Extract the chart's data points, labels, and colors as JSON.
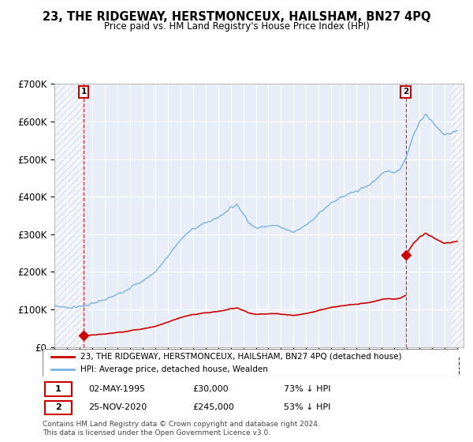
{
  "title": "23, THE RIDGEWAY, HERSTMONCEUX, HAILSHAM, BN27 4PQ",
  "subtitle": "Price paid vs. HM Land Registry's House Price Index (HPI)",
  "ylim": [
    0,
    700000
  ],
  "yticks": [
    0,
    100000,
    200000,
    300000,
    400000,
    500000,
    600000,
    700000
  ],
  "ytick_labels": [
    "£0",
    "£100K",
    "£200K",
    "£300K",
    "£400K",
    "£500K",
    "£600K",
    "£700K"
  ],
  "purchase1_year": 1995.33,
  "purchase1_price": 30000,
  "purchase2_year": 2020.9,
  "purchase2_price": 245000,
  "legend1": "23, THE RIDGEWAY, HERSTMONCEUX, HAILSHAM, BN27 4PQ (detached house)",
  "legend2": "HPI: Average price, detached house, Wealden",
  "note1_date": "02-MAY-1995",
  "note1_price": "£30,000",
  "note1_hpi": "73% ↓ HPI",
  "note2_date": "25-NOV-2020",
  "note2_price": "£245,000",
  "note2_hpi": "53% ↓ HPI",
  "footer": "Contains HM Land Registry data © Crown copyright and database right 2024.\nThis data is licensed under the Open Government Licence v3.0.",
  "hpi_color": "#7ab3e0",
  "property_color": "#cc0000",
  "plot_bg": "#e8eef8",
  "hatch_color": "#c8c8c8",
  "xmin": 1993.0,
  "xmax": 2025.5,
  "hatch_right_start": 2024.5
}
